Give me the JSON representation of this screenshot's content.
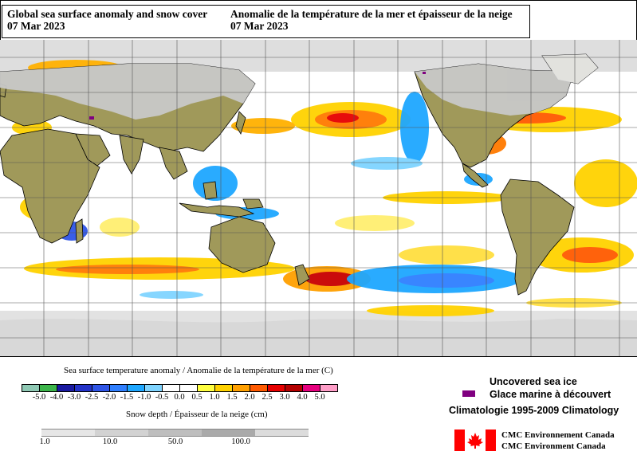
{
  "title": {
    "en": "Global sea surface anomaly and snow cover",
    "fr": "Anomalie de la température de la mer et épaisseur de la neige",
    "date_en": "07 Mar 2023",
    "date_fr": "07 Mar 2023"
  },
  "sst_legend": {
    "label": "Sea surface temperature anomaly / Anomalie de la température de la mer (C)",
    "ticks": [
      "-5.0",
      "-4.0",
      "-3.0",
      "-2.5",
      "-2.0",
      "-1.5",
      "-1.0",
      "-0.5",
      "0.0",
      "0.5",
      "1.0",
      "1.5",
      "2.0",
      "2.5",
      "3.0",
      "4.0",
      "5.0"
    ],
    "colors": [
      "#8fc9b4",
      "#3cb54a",
      "#1a1aa0",
      "#2433c8",
      "#2f55e6",
      "#2f7fff",
      "#1ea7ff",
      "#7fd4ff",
      "#ffffff",
      "#ffffff",
      "#ffff40",
      "#ffd200",
      "#ffa000",
      "#ff5a00",
      "#e60000",
      "#b40000",
      "#e6007e",
      "#ff9ec8"
    ]
  },
  "snow_legend": {
    "label": "Snow depth / Épaisseur de la neige (cm)",
    "ticks": [
      "1.0",
      "10.0",
      "50.0",
      "100.0"
    ],
    "colors": [
      "#e6e6e6",
      "#d2d2d2",
      "#bebebe",
      "#aaaaaa",
      "#dcdcdc"
    ]
  },
  "sea_ice": {
    "label_en": "Uncovered sea ice",
    "label_fr": "Glace marine à découvert",
    "color": "#800080"
  },
  "climatology": "Climatologie 1995-2009 Climatology",
  "credit": {
    "fr": "CMC Environnement Canada",
    "en": "CMC Environment Canada"
  },
  "colors": {
    "land": "#a0995a",
    "snow": "#c8c8c8",
    "ice": "#e0e0e0",
    "grid": "#555555"
  }
}
